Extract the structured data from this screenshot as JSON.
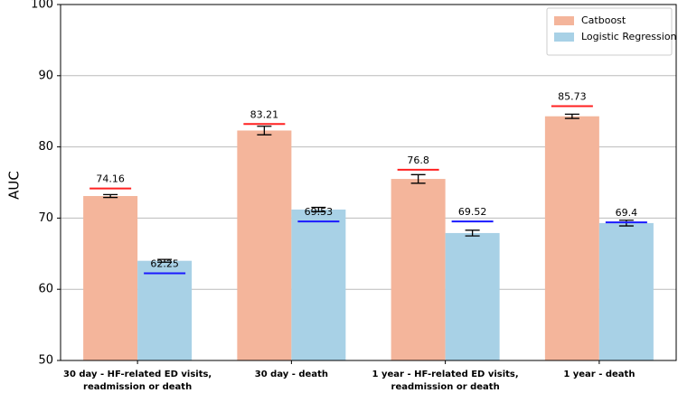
{
  "chart_data": {
    "type": "bar",
    "y_label": "AUC",
    "categories": [
      [
        "30 day - HF-related ED visits,",
        "readmission or death"
      ],
      [
        "30 day - death"
      ],
      [
        "1 year - HF-related ED visits,",
        "readmission or death"
      ],
      [
        "1 year - death"
      ]
    ],
    "series": [
      {
        "name": "Catboost",
        "color": "#f4b59b",
        "values": [
          73.1,
          82.3,
          75.5,
          84.3
        ],
        "errors": [
          0.2,
          0.6,
          0.6,
          0.3
        ],
        "reference_values": [
          74.16,
          83.21,
          76.8,
          85.73
        ],
        "reference_color": "#ff2020"
      },
      {
        "name": "Logistic Regression",
        "color": "#a8d1e6",
        "values": [
          64.0,
          71.2,
          67.9,
          69.3
        ],
        "errors": [
          0.2,
          0.3,
          0.4,
          0.4
        ],
        "reference_values": [
          62.25,
          69.53,
          69.52,
          69.4
        ],
        "reference_color": "#1a1aff"
      }
    ],
    "ylim": [
      50,
      100
    ],
    "yticks": [
      50,
      60,
      70,
      80,
      90,
      100
    ],
    "grid": true,
    "legend": "upper right"
  }
}
